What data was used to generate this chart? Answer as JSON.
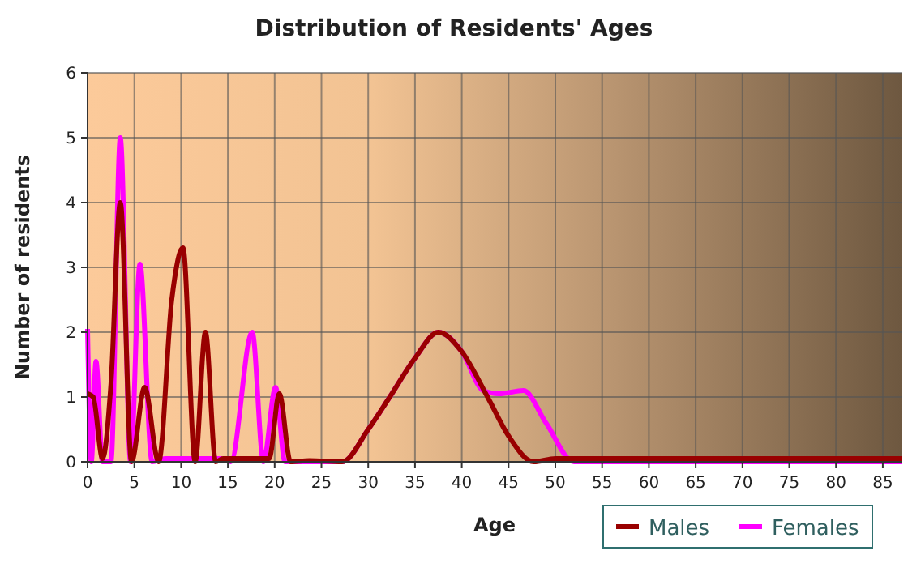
{
  "chart_data": {
    "type": "line",
    "title": "Distribution of Residents' Ages",
    "xlabel": "Age",
    "ylabel": "Number of residents",
    "xlim": [
      0,
      87
    ],
    "xticks": [
      0,
      5,
      10,
      15,
      20,
      25,
      30,
      35,
      40,
      45,
      50,
      55,
      60,
      65,
      70,
      75,
      80,
      85
    ],
    "ylim": [
      0,
      6
    ],
    "yticks": [
      0,
      1,
      2,
      3,
      4,
      5,
      6
    ],
    "grid": true,
    "legend": "bottom",
    "line_style": "solid",
    "marker": "none",
    "series": [
      {
        "name": "Males",
        "color": "#990000",
        "x": [
          0,
          0.6,
          1.6,
          2.5,
          3.5,
          4.7,
          6.1,
          7.6,
          9,
          10.2,
          11.5,
          12.6,
          13.7,
          14.5,
          19.4,
          20.5,
          21.7,
          23.7,
          27.2,
          30,
          32.3,
          35,
          37.5,
          40,
          42.9,
          45,
          47.7,
          50,
          60,
          70,
          87
        ],
        "values": [
          1.05,
          1,
          0.05,
          1.2,
          4,
          0,
          1.15,
          0,
          2.5,
          3.3,
          0,
          2,
          0,
          0.05,
          0.05,
          1.05,
          0,
          0.02,
          0,
          0.5,
          1,
          1.6,
          2,
          1.7,
          0.96,
          0.4,
          0,
          0.05,
          0.05,
          0.05,
          0.05
        ]
      },
      {
        "name": "Females",
        "color": "#ff00ff",
        "x": [
          0,
          0.4,
          0.9,
          1.6,
          2.5,
          3.5,
          4.6,
          5.6,
          6.9,
          8.3,
          14.4,
          15.3,
          17.6,
          18.8,
          20.1,
          21.1,
          27.2,
          30,
          32.3,
          35,
          37.5,
          40,
          42.3,
          44,
          46.6,
          49,
          52,
          60,
          87
        ],
        "values": [
          2.05,
          0,
          1.55,
          0,
          0,
          5,
          0,
          3.05,
          0,
          0.05,
          0.05,
          0,
          2,
          0,
          1.15,
          0,
          0,
          0.5,
          1,
          1.6,
          2,
          1.7,
          1.1,
          1.05,
          1.1,
          0.6,
          0,
          0,
          0
        ]
      }
    ]
  }
}
